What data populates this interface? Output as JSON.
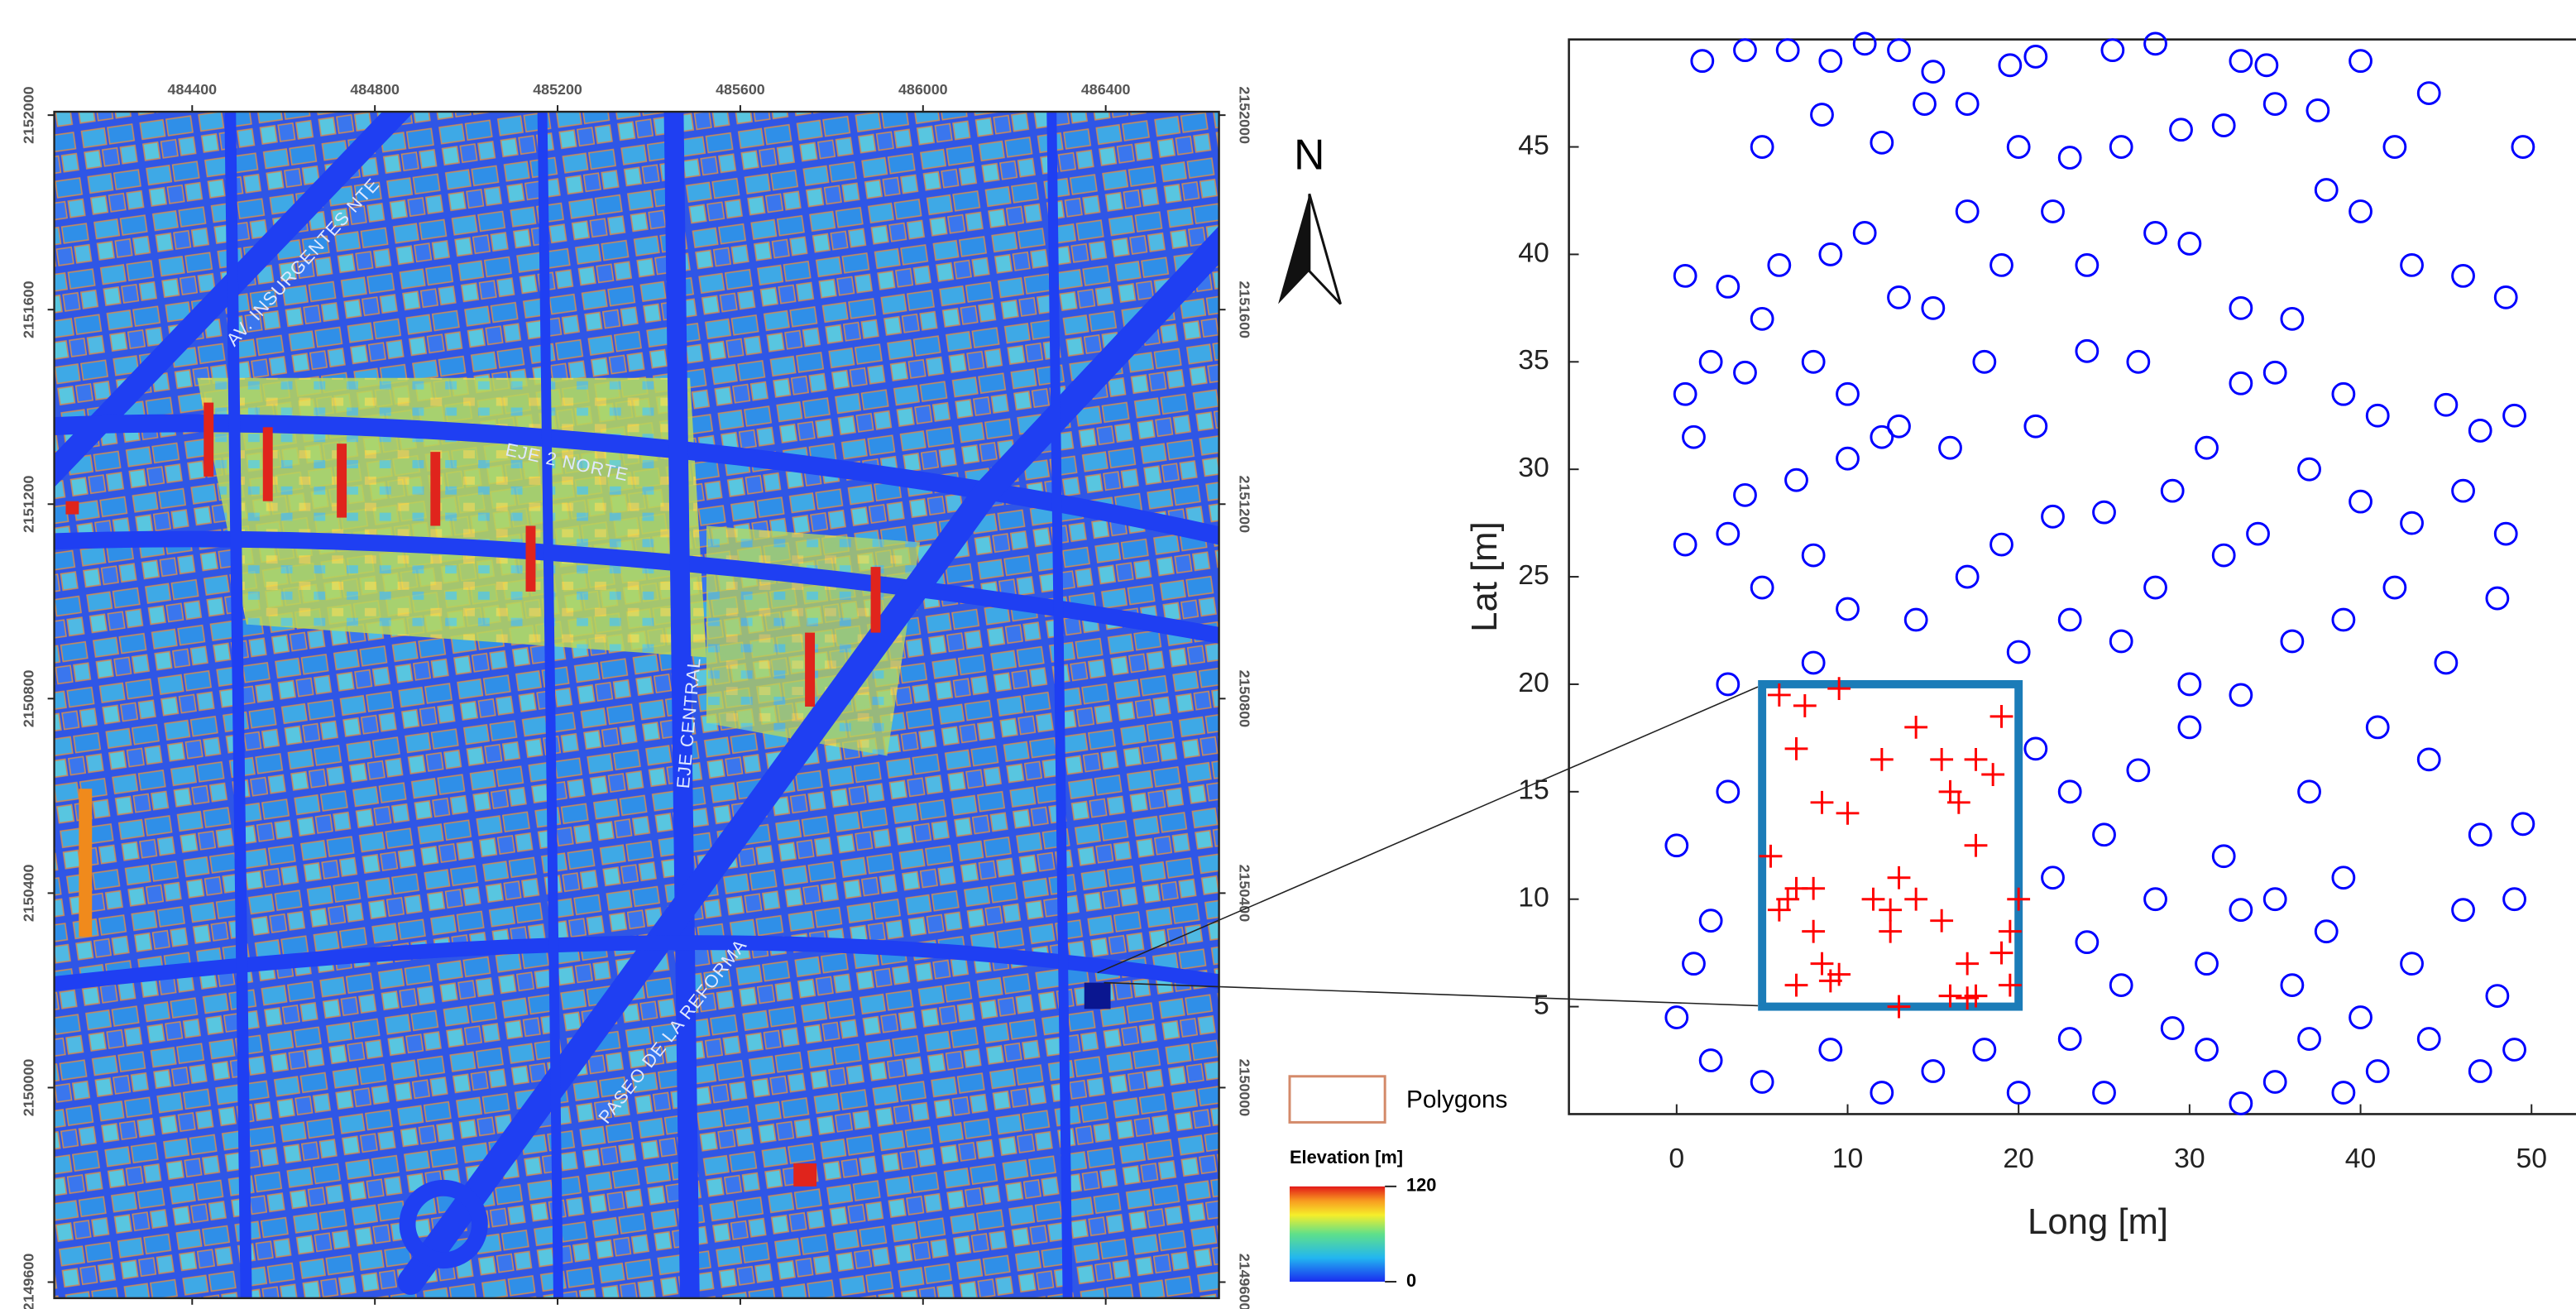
{
  "map": {
    "xlim": [
      484098,
      486648
    ],
    "ylim": [
      2149567,
      2152007
    ],
    "xticks": [
      484400,
      484800,
      485200,
      485600,
      486000,
      486400
    ],
    "yticks": [
      2152000,
      2151600,
      2151200,
      2150800,
      2150400,
      2150000,
      2149600
    ],
    "north": "N",
    "street_labels": [
      "AV. INSURGENTES NTE",
      "EJE 2 NORTE",
      "EJE CENTRAL",
      "PASEO DE LA REFORMA"
    ],
    "legend": {
      "polygons": "Polygons",
      "elevation_title": "Elevation [m]",
      "elevation_min": 0,
      "elevation_max": 120
    }
  },
  "chart_data": {
    "type": "scatter",
    "xlabel": "Long [m]",
    "ylabel": "Lat [m]",
    "xlim": [
      -6.3,
      52.6
    ],
    "ylim": [
      0,
      50
    ],
    "xticks": [
      0,
      10,
      20,
      30,
      40,
      50
    ],
    "yticks": [
      5,
      10,
      15,
      20,
      25,
      30,
      35,
      40,
      45
    ],
    "highlight_box": {
      "x": [
        5,
        20
      ],
      "y": [
        5,
        20
      ],
      "color": "#1b7cb8"
    },
    "series": [
      {
        "marker": "circle",
        "color": "#0000ff",
        "x": [
          1.5,
          4,
          6.5,
          9,
          11,
          13,
          15,
          19.5,
          21,
          25.5,
          28,
          33,
          34.5,
          40,
          5,
          8.5,
          12,
          14.5,
          17,
          20,
          23,
          26,
          29.5,
          32,
          35,
          37.5,
          42,
          44,
          49.5,
          0.5,
          3,
          6,
          9,
          11,
          13,
          17,
          19,
          22,
          24,
          28,
          30,
          33,
          36,
          38,
          40,
          43,
          46,
          48.5,
          0.5,
          2,
          4,
          5,
          8,
          10,
          12,
          15,
          18,
          21,
          24,
          27,
          31,
          33,
          35,
          39,
          41,
          45,
          47,
          49,
          1,
          4,
          7,
          10,
          13,
          16,
          19,
          22,
          25,
          29,
          32,
          34,
          37,
          40,
          43,
          46,
          48.5,
          0.5,
          3,
          5,
          8,
          10,
          14,
          17,
          20,
          23,
          26,
          28,
          30,
          33,
          36,
          39,
          42,
          45,
          48,
          3,
          8,
          21,
          23,
          25,
          27,
          30,
          32,
          35,
          37,
          39,
          41,
          44,
          47,
          49.5,
          0,
          2,
          1,
          3,
          22,
          24,
          26,
          28,
          31,
          33,
          36,
          38,
          40,
          43,
          46,
          48,
          49,
          0,
          2,
          5,
          9,
          12,
          15,
          18,
          20,
          23,
          25,
          29,
          31,
          33,
          35,
          37,
          39,
          41,
          44,
          47,
          49
        ],
        "y": [
          49,
          49.5,
          49.5,
          49,
          49.8,
          49.5,
          48.5,
          48.8,
          49.2,
          49.5,
          49.8,
          49,
          48.8,
          49,
          45,
          46.5,
          45.2,
          47,
          47,
          45,
          44.5,
          45,
          45.8,
          46,
          47,
          46.7,
          45,
          47.5,
          45,
          39,
          38.5,
          39.5,
          40,
          41,
          38,
          42,
          39.5,
          42,
          39.5,
          41,
          40.5,
          37.5,
          37,
          43,
          42,
          39.5,
          39,
          38,
          33.5,
          35,
          34.5,
          37,
          35,
          33.5,
          31.5,
          37.5,
          35,
          32,
          35.5,
          35,
          31,
          34,
          34.5,
          33.5,
          32.5,
          33,
          31.8,
          32.5,
          31.5,
          28.8,
          29.5,
          30.5,
          32,
          31,
          26.5,
          27.8,
          28,
          29,
          26,
          27,
          30,
          28.5,
          27.5,
          29,
          27,
          26.5,
          27,
          24.5,
          26,
          23.5,
          23,
          25,
          21.5,
          23,
          22,
          24.5,
          20,
          19.5,
          22,
          23,
          24.5,
          21,
          24,
          20,
          21,
          17,
          15,
          13,
          16,
          18,
          12,
          10,
          15,
          11,
          18,
          16.5,
          13,
          13.5,
          12.5,
          9,
          7,
          15,
          11,
          8,
          6,
          10,
          7,
          9.5,
          6,
          8.5,
          4.5,
          7,
          9.5,
          5.5,
          10,
          4.5,
          2.5,
          1.5,
          3,
          1,
          2,
          3,
          1,
          3.5,
          1,
          4,
          3,
          0.5,
          1.5,
          3.5,
          1,
          2,
          3.5,
          2,
          3
        ]
      },
      {
        "marker": "plus",
        "color": "#ff0000",
        "x": [
          6,
          7.5,
          9.5,
          14,
          19,
          7,
          12,
          15.5,
          17.5,
          18.5,
          16,
          16.5,
          8.5,
          10,
          17.5,
          5.5,
          13,
          14,
          11.5,
          12.5,
          7,
          8,
          6,
          6.5,
          20,
          15.5,
          19.5,
          8,
          12.5,
          19,
          17,
          8.5,
          9,
          7,
          19.5,
          16,
          17,
          17.5,
          9.5,
          13
        ],
        "y": [
          19.5,
          19,
          19.8,
          18,
          18.5,
          17,
          16.5,
          16.5,
          16.5,
          15.8,
          15,
          14.5,
          14.5,
          14,
          12.5,
          12,
          11,
          10,
          10,
          9.5,
          10.5,
          10.5,
          9.5,
          10,
          10,
          9,
          8.5,
          8.5,
          8.5,
          7.5,
          7,
          7,
          6.2,
          6,
          6,
          5.5,
          5.4,
          5.5,
          6.5,
          5
        ]
      }
    ]
  }
}
